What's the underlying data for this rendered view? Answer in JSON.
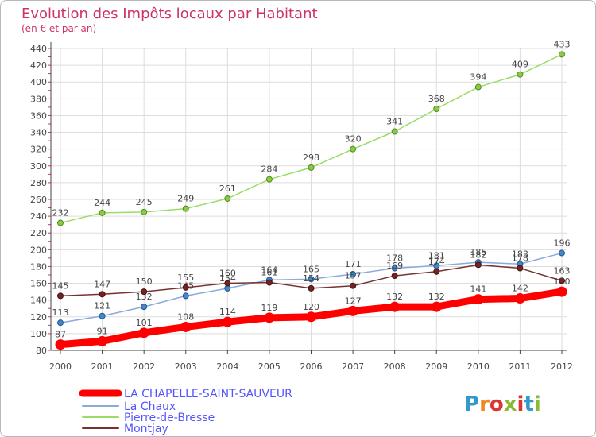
{
  "chart_data": {
    "type": "line",
    "title": "Evolution des Impôts locaux par Habitant",
    "subtitle": "(en € et par an)",
    "x": [
      "2000",
      "2001",
      "2002",
      "2003",
      "2004",
      "2005",
      "2006",
      "2007",
      "2008",
      "2009",
      "2010",
      "2011",
      "2012"
    ],
    "yticks": [
      80,
      100,
      120,
      140,
      160,
      180,
      200,
      220,
      240,
      260,
      280,
      300,
      320,
      340,
      360,
      380,
      400,
      420,
      440
    ],
    "ylim": [
      80,
      440
    ],
    "grid": true,
    "legend_position": "bottom-left",
    "series": [
      {
        "name": "LA CHAPELLE-SAINT-SAUVEUR",
        "color": "#ff0000",
        "values": [
          87,
          91,
          101,
          108,
          114,
          119,
          120,
          127,
          132,
          132,
          141,
          142,
          150
        ]
      },
      {
        "name": "La Chaux",
        "color": "#6699cc",
        "values": [
          113,
          121,
          132,
          145,
          154,
          164,
          165,
          171,
          178,
          181,
          185,
          183,
          196
        ]
      },
      {
        "name": "Pierre-de-Bresse",
        "color": "#99dd66",
        "values": [
          232,
          244,
          245,
          249,
          261,
          284,
          298,
          320,
          341,
          368,
          394,
          409,
          433
        ]
      },
      {
        "name": "Montjay",
        "color": "#773333",
        "values": [
          145,
          147,
          150,
          155,
          160,
          161,
          154,
          157,
          169,
          174,
          182,
          178,
          163
        ]
      }
    ]
  },
  "logo": {
    "text": "Proxiti"
  }
}
